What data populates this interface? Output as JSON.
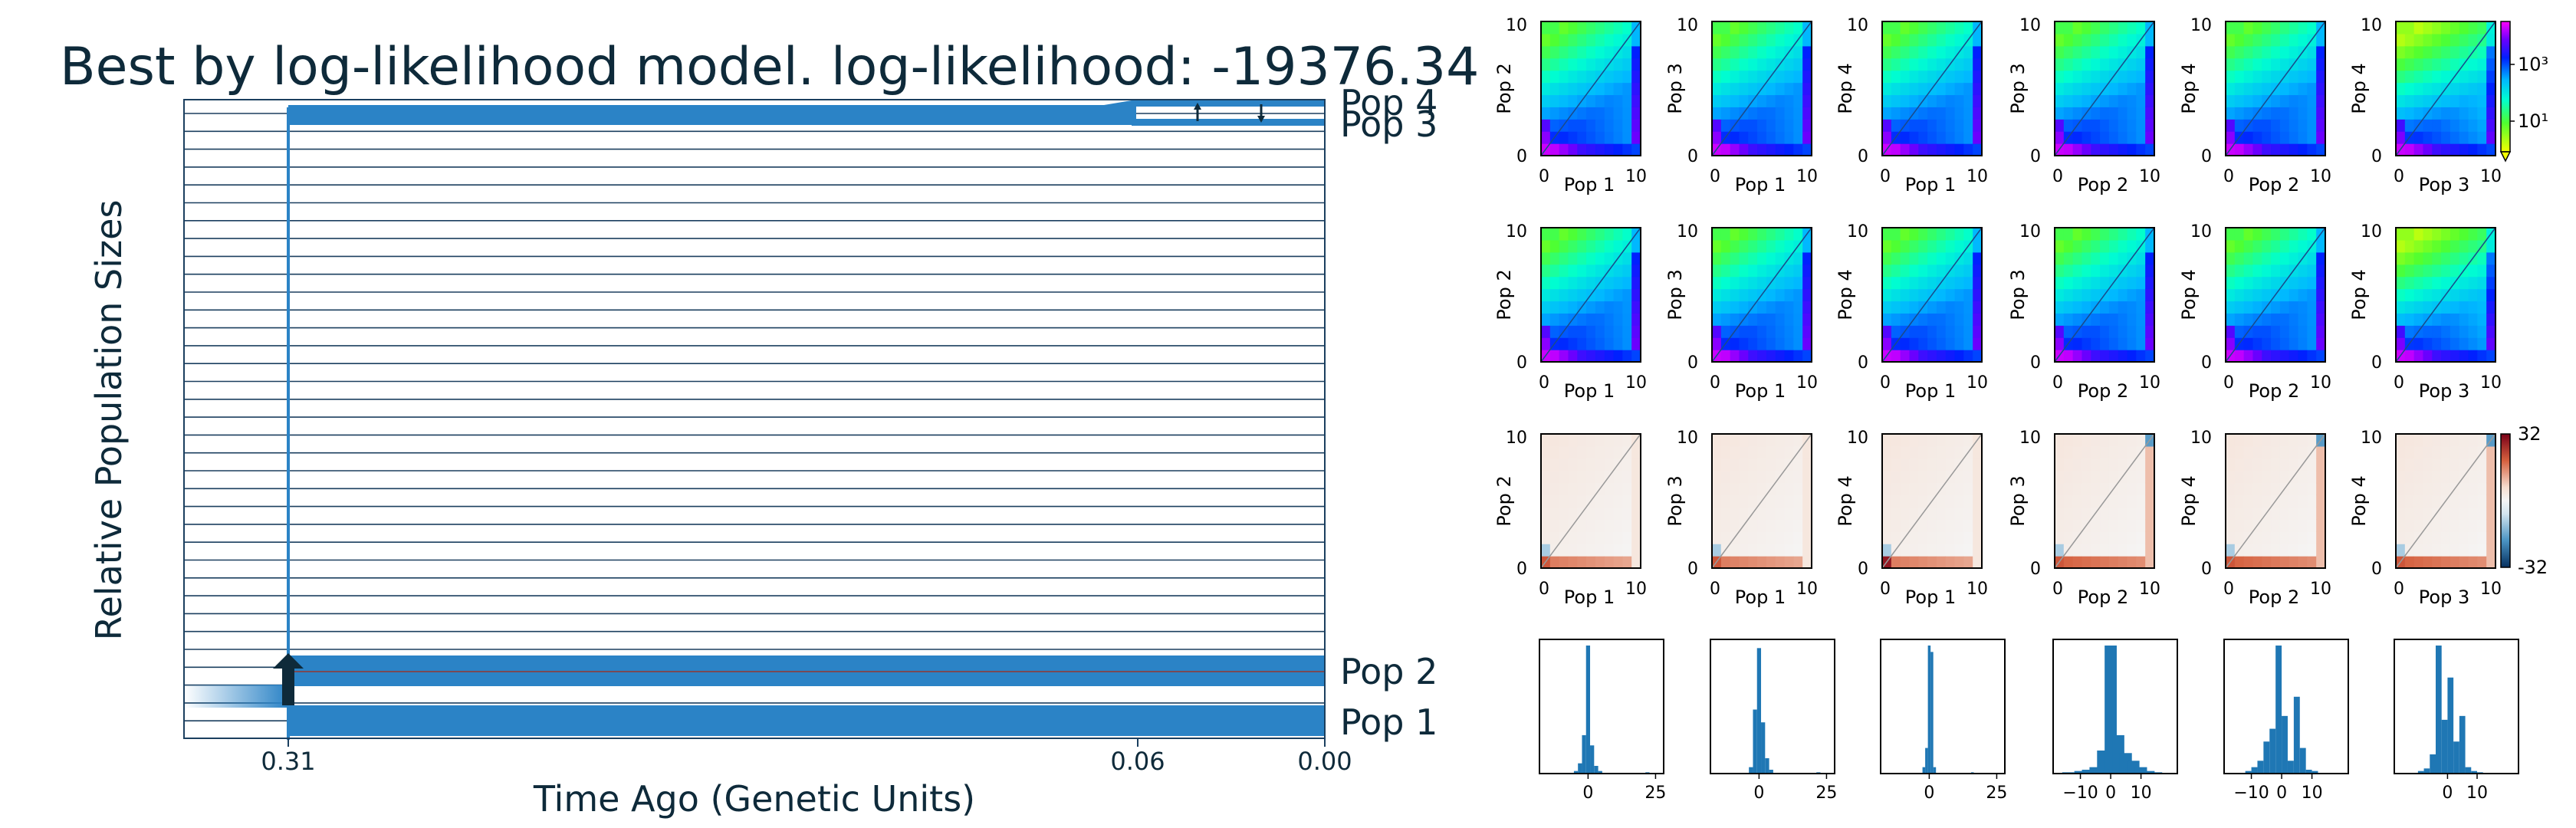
{
  "figure": {
    "title": "Best by log-likelihood model. log-likelihood: -19376.34"
  },
  "colors": {
    "pop_blue": "#2b83c6",
    "frame_navy": "#1b3f5f",
    "title_text": "#0e2a3a",
    "hist_blue": "#1f77b4"
  },
  "chart_data": [
    {
      "type": "demographic-history",
      "title": "Best by log-likelihood model. log-likelihood: -19376.34",
      "xlabel": "Time Ago (Genetic Units)",
      "ylabel": "Relative Population Sizes",
      "xticks": [
        "0.31",
        "0.06",
        "0.00"
      ],
      "populations": [
        {
          "name": "Pop 4"
        },
        {
          "name": "Pop 3"
        },
        {
          "name": "Pop 2"
        },
        {
          "name": "Pop 1"
        }
      ],
      "split_times": [
        0.31,
        0.06
      ]
    },
    {
      "type": "heatmap",
      "row": "data",
      "colorbar": {
        "scale": "log",
        "ticks": [
          "10³",
          "10¹"
        ]
      },
      "panels": [
        {
          "xlabel": "Pop 1",
          "ylabel": "Pop 2",
          "xticks": [
            "0",
            "10"
          ],
          "yticks": [
            "0",
            "10"
          ]
        },
        {
          "xlabel": "Pop 1",
          "ylabel": "Pop 3",
          "xticks": [
            "0",
            "10"
          ],
          "yticks": [
            "0",
            "10"
          ]
        },
        {
          "xlabel": "Pop 1",
          "ylabel": "Pop 4",
          "xticks": [
            "0",
            "10"
          ],
          "yticks": [
            "0",
            "10"
          ]
        },
        {
          "xlabel": "Pop 2",
          "ylabel": "Pop 3",
          "xticks": [
            "0",
            "10"
          ],
          "yticks": [
            "0",
            "10"
          ]
        },
        {
          "xlabel": "Pop 2",
          "ylabel": "Pop 4",
          "xticks": [
            "0",
            "10"
          ],
          "yticks": [
            "0",
            "10"
          ]
        },
        {
          "xlabel": "Pop 3",
          "ylabel": "Pop 4",
          "xticks": [
            "0",
            "10"
          ],
          "yticks": [
            "0",
            "10"
          ]
        }
      ]
    },
    {
      "type": "heatmap",
      "row": "model",
      "panels": [
        {
          "xlabel": "Pop 1",
          "ylabel": "Pop 2",
          "xticks": [
            "0",
            "10"
          ],
          "yticks": [
            "0",
            "10"
          ]
        },
        {
          "xlabel": "Pop 1",
          "ylabel": "Pop 3",
          "xticks": [
            "0",
            "10"
          ],
          "yticks": [
            "0",
            "10"
          ]
        },
        {
          "xlabel": "Pop 1",
          "ylabel": "Pop 4",
          "xticks": [
            "0",
            "10"
          ],
          "yticks": [
            "0",
            "10"
          ]
        },
        {
          "xlabel": "Pop 2",
          "ylabel": "Pop 3",
          "xticks": [
            "0",
            "10"
          ],
          "yticks": [
            "0",
            "10"
          ]
        },
        {
          "xlabel": "Pop 2",
          "ylabel": "Pop 4",
          "xticks": [
            "0",
            "10"
          ],
          "yticks": [
            "0",
            "10"
          ]
        },
        {
          "xlabel": "Pop 3",
          "ylabel": "Pop 4",
          "xticks": [
            "0",
            "10"
          ],
          "yticks": [
            "0",
            "10"
          ]
        }
      ]
    },
    {
      "type": "heatmap",
      "row": "residuals",
      "colorbar": {
        "scale": "linear",
        "ticks": [
          "32",
          "-32"
        ],
        "range": [
          -32,
          32
        ]
      },
      "panels": [
        {
          "xlabel": "Pop 1",
          "ylabel": "Pop 2",
          "xticks": [
            "0",
            "10"
          ],
          "yticks": [
            "0",
            "10"
          ]
        },
        {
          "xlabel": "Pop 1",
          "ylabel": "Pop 3",
          "xticks": [
            "0",
            "10"
          ],
          "yticks": [
            "0",
            "10"
          ]
        },
        {
          "xlabel": "Pop 1",
          "ylabel": "Pop 4",
          "xticks": [
            "0",
            "10"
          ],
          "yticks": [
            "0",
            "10"
          ]
        },
        {
          "xlabel": "Pop 2",
          "ylabel": "Pop 3",
          "xticks": [
            "0",
            "10"
          ],
          "yticks": [
            "0",
            "10"
          ]
        },
        {
          "xlabel": "Pop 2",
          "ylabel": "Pop 4",
          "xticks": [
            "0",
            "10"
          ],
          "yticks": [
            "0",
            "10"
          ]
        },
        {
          "xlabel": "Pop 3",
          "ylabel": "Pop 4",
          "xticks": [
            "0",
            "10"
          ],
          "yticks": [
            "0",
            "10"
          ]
        }
      ]
    },
    {
      "type": "bar",
      "row": "residual-histograms",
      "panels": [
        {
          "xlim": [
            -18,
            28
          ],
          "xticks": [
            0,
            25
          ],
          "bins": [
            [
              -4.5,
              0.02
            ],
            [
              -3,
              0.08
            ],
            [
              -1.5,
              0.3
            ],
            [
              0,
              1.0
            ],
            [
              1.5,
              0.22
            ],
            [
              3,
              0.06
            ],
            [
              4.5,
              0.02
            ],
            [
              22,
              0.01
            ]
          ]
        },
        {
          "xlim": [
            -18,
            28
          ],
          "xticks": [
            0,
            25
          ],
          "bins": [
            [
              -3,
              0.05
            ],
            [
              -1.5,
              0.5
            ],
            [
              0,
              0.98
            ],
            [
              1.5,
              0.4
            ],
            [
              3,
              0.12
            ],
            [
              4.5,
              0.03
            ],
            [
              22,
              0.01
            ]
          ]
        },
        {
          "xlim": [
            -18,
            28
          ],
          "xticks": [
            0,
            25
          ],
          "bins": [
            [
              -2,
              0.05
            ],
            [
              -1,
              0.2
            ],
            [
              0,
              1.0
            ],
            [
              1,
              0.95
            ],
            [
              2,
              0.05
            ],
            [
              16,
              0.01
            ]
          ]
        },
        {
          "xlim": [
            -19,
            22
          ],
          "xticks": [
            -10,
            0,
            10
          ],
          "bins": [
            [
              -14,
              0.01
            ],
            [
              -10,
              0.02
            ],
            [
              -7.5,
              0.03
            ],
            [
              -5,
              0.05
            ],
            [
              -2.5,
              0.18
            ],
            [
              0,
              1.0
            ],
            [
              2.5,
              0.3
            ],
            [
              5,
              0.16
            ],
            [
              7.5,
              0.1
            ],
            [
              10,
              0.05
            ],
            [
              12.5,
              0.02
            ],
            [
              15,
              0.01
            ]
          ]
        },
        {
          "xlim": [
            -19,
            22
          ],
          "xticks": [
            -10,
            0,
            10
          ],
          "bins": [
            [
              -11,
              0.02
            ],
            [
              -9,
              0.05
            ],
            [
              -7,
              0.1
            ],
            [
              -5,
              0.25
            ],
            [
              -3,
              0.35
            ],
            [
              -1,
              1.0
            ],
            [
              1,
              0.45
            ],
            [
              3,
              0.1
            ],
            [
              5,
              0.6
            ],
            [
              7,
              0.2
            ],
            [
              9,
              0.03
            ],
            [
              11,
              0.02
            ]
          ]
        },
        {
          "xlim": [
            -18,
            24
          ],
          "xticks": [
            0,
            10
          ],
          "bins": [
            [
              -9,
              0.02
            ],
            [
              -7,
              0.04
            ],
            [
              -5,
              0.15
            ],
            [
              -3,
              1.0
            ],
            [
              -1,
              0.42
            ],
            [
              1,
              0.75
            ],
            [
              3,
              0.25
            ],
            [
              5,
              0.45
            ],
            [
              7,
              0.05
            ],
            [
              9,
              0.02
            ],
            [
              11,
              0.01
            ]
          ]
        }
      ]
    }
  ]
}
